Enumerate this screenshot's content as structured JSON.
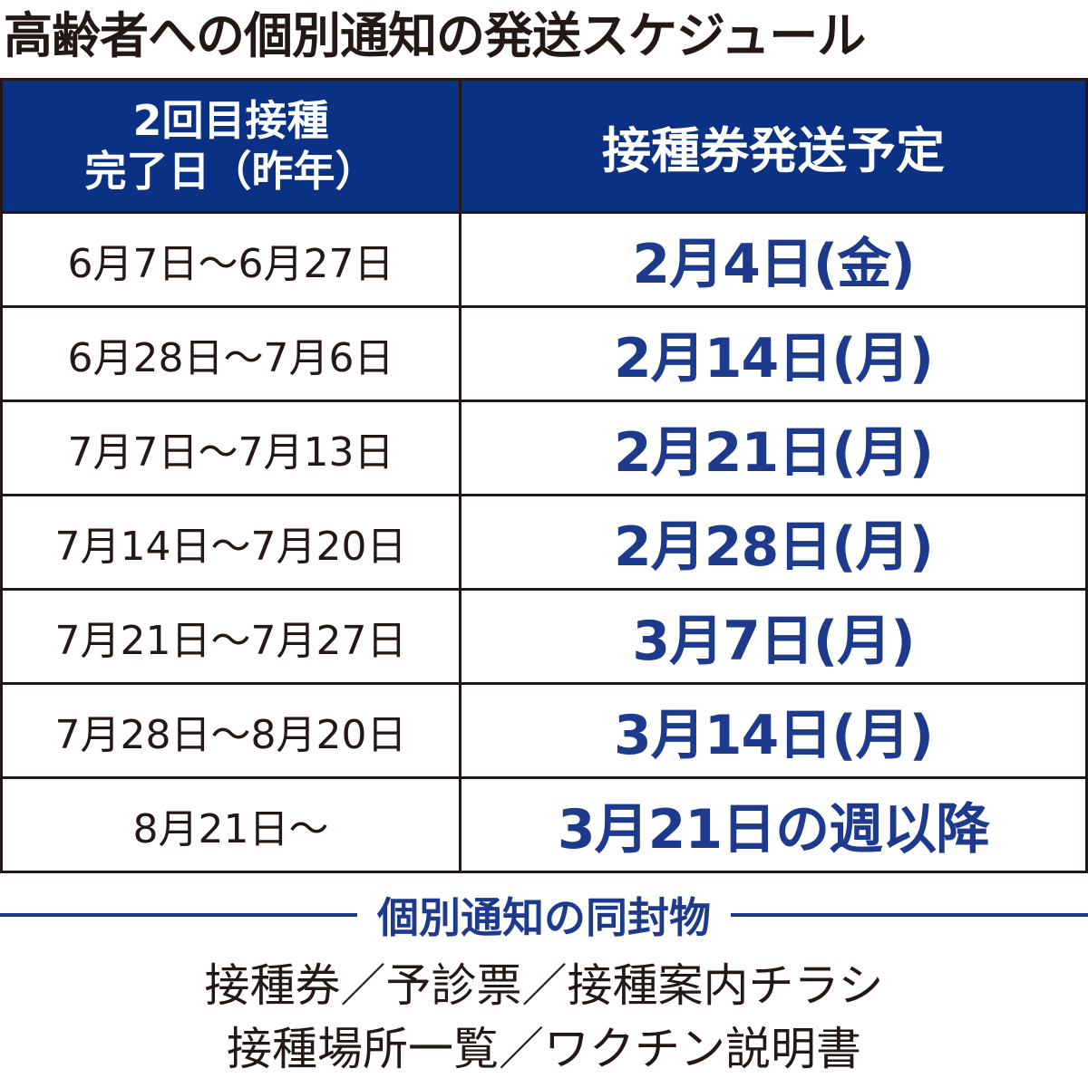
{
  "title": "高齢者への個別通知の発送スケジュール",
  "colors": {
    "header_bg": "#0b3185",
    "accent_text": "#1d3a8c",
    "text": "#231815"
  },
  "table": {
    "headers": {
      "col1_line1": "2回目接種",
      "col1_line2": "完了日（昨年）",
      "col2": "接種券発送予定"
    },
    "rows": [
      {
        "completed": "6月7日～6月27日",
        "send": "2月4日(金)"
      },
      {
        "completed": "6月28日～7月6日",
        "send": "2月14日(月)"
      },
      {
        "completed": "7月7日～7月13日",
        "send": "2月21日(月)"
      },
      {
        "completed": "7月14日～7月20日",
        "send": "2月28日(月)"
      },
      {
        "completed": "7月21日～7月27日",
        "send": "3月7日(月)"
      },
      {
        "completed": "7月28日～8月20日",
        "send": "3月14日(月)"
      },
      {
        "completed": "8月21日～",
        "send": "3月21日の週以降"
      }
    ]
  },
  "enclosures": {
    "label": "個別通知の同封物",
    "line1": "接種券／予診票／接種案内チラシ",
    "line2": "接種場所一覧／ワクチン説明書"
  }
}
